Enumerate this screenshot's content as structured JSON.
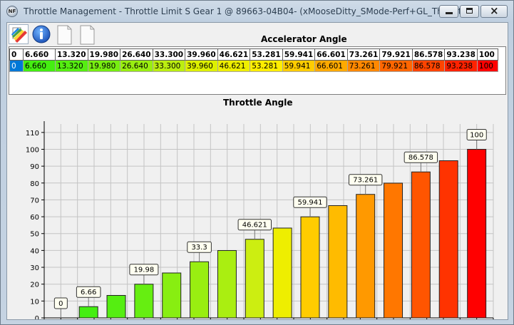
{
  "window": {
    "title": "Throttle Management - Throttle Limit S Gear 1 @ 89663-04B04- (xMooseDitty_SMode-Perf+GL_Thx.vft)",
    "app_icon": "NF"
  },
  "toolbar": {
    "buttons": [
      {
        "name": "edit-colors-icon"
      },
      {
        "name": "info-icon"
      },
      {
        "name": "blank-page-icon"
      },
      {
        "name": "blank-page-icon"
      }
    ]
  },
  "accelerator": {
    "title": "Accelerator Angle",
    "header": [
      "0",
      "6.660",
      "13.320",
      "19.980",
      "26.640",
      "33.300",
      "39.960",
      "46.621",
      "53.281",
      "59.941",
      "66.601",
      "73.261",
      "79.921",
      "86.578",
      "93.238",
      "100"
    ],
    "row": [
      "0",
      "6.660",
      "13.320",
      "19.980",
      "26.640",
      "33.300",
      "39.960",
      "46.621",
      "53.281",
      "59.941",
      "66.601",
      "73.261",
      "79.921",
      "86.578",
      "93.238",
      "100"
    ],
    "colors": [
      "#0078d7",
      "#44ee11",
      "#55ee11",
      "#77ee11",
      "#99ee11",
      "#bbee11",
      "#ddf000",
      "#eeee00",
      "#ffee00",
      "#ffcc00",
      "#ffaa00",
      "#ff8800",
      "#ff6600",
      "#ff4400",
      "#ff2200",
      "#ff0000"
    ]
  },
  "chart_title": "Throttle Angle",
  "chart_data": {
    "type": "bar",
    "title": "Throttle Angle",
    "x": [
      0,
      6.66,
      13.32,
      19.98,
      26.64,
      33.3,
      39.96,
      46.621,
      53.281,
      59.941,
      66.601,
      73.261,
      79.921,
      86.578,
      93.238,
      100
    ],
    "values": [
      0,
      6.66,
      13.32,
      19.98,
      26.64,
      33.3,
      39.96,
      46.621,
      53.281,
      59.941,
      66.601,
      73.261,
      79.921,
      86.578,
      93.238,
      100
    ],
    "xlim": [
      -4,
      104
    ],
    "ylim": [
      0,
      115
    ],
    "xticks": [
      -4,
      0,
      4,
      8,
      12,
      16,
      20,
      24,
      28,
      32,
      36,
      40,
      44,
      48,
      52,
      56,
      60,
      64,
      68,
      72,
      76,
      80,
      84,
      88,
      92,
      96,
      100,
      104
    ],
    "yticks": [
      0,
      10,
      20,
      30,
      40,
      50,
      60,
      70,
      80,
      90,
      100,
      110
    ],
    "labels": [
      {
        "i": 0,
        "text": "0"
      },
      {
        "i": 1,
        "text": "6.66"
      },
      {
        "i": 3,
        "text": "19.98"
      },
      {
        "i": 5,
        "text": "33.3"
      },
      {
        "i": 7,
        "text": "46.621"
      },
      {
        "i": 9,
        "text": "59.941"
      },
      {
        "i": 11,
        "text": "73.261"
      },
      {
        "i": 13,
        "text": "86.578"
      },
      {
        "i": 15,
        "text": "100"
      }
    ],
    "grid": true,
    "colors": [
      "#44ee11",
      "#44ee11",
      "#55ee11",
      "#66ee11",
      "#88ee11",
      "#99ee11",
      "#aaee11",
      "#ccee11",
      "#eeee00",
      "#ffcc00",
      "#ffbb00",
      "#ff9900",
      "#ff7700",
      "#ff5500",
      "#ff3300",
      "#ff0000"
    ]
  }
}
